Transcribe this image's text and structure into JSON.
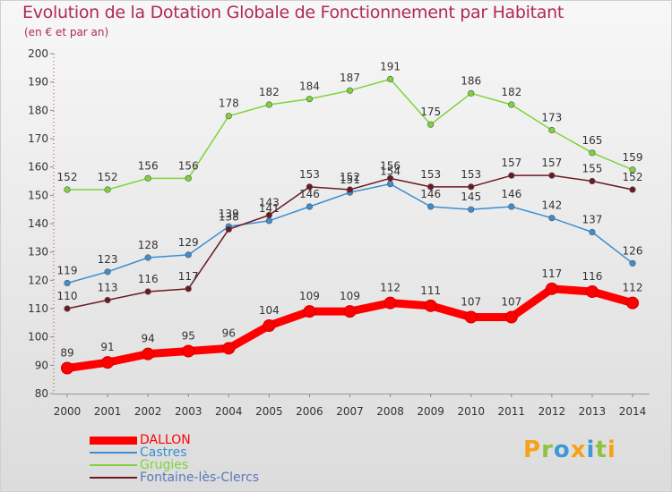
{
  "header": {
    "title": "Evolution de la Dotation Globale de Fonctionnement par Habitant",
    "subtitle": "(en € et par an)"
  },
  "chart_data": {
    "type": "line",
    "x": [
      "2000",
      "2001",
      "2002",
      "2003",
      "2004",
      "2005",
      "2006",
      "2007",
      "2008",
      "2009",
      "2010",
      "2011",
      "2012",
      "2013",
      "2014"
    ],
    "ylim": [
      80,
      200
    ],
    "yticks": [
      80,
      90,
      100,
      110,
      120,
      130,
      140,
      150,
      160,
      170,
      180,
      190,
      200
    ],
    "grid": false,
    "legend_position": "bottom-left",
    "series": [
      {
        "name": "DALLON",
        "color": "#ff0000",
        "values": [
          89,
          91,
          94,
          95,
          96,
          104,
          109,
          109,
          112,
          111,
          107,
          107,
          117,
          116,
          112
        ]
      },
      {
        "name": "Castres",
        "color": "#3c8ed0",
        "values": [
          119,
          123,
          128,
          129,
          139,
          141,
          146,
          151,
          154,
          146,
          145,
          146,
          142,
          137,
          126
        ]
      },
      {
        "name": "Grugies",
        "color": "#7dd43a",
        "values": [
          152,
          152,
          156,
          156,
          178,
          182,
          184,
          187,
          191,
          175,
          186,
          182,
          173,
          165,
          159
        ]
      },
      {
        "name": "Fontaine-lès-Clercs",
        "color": "#6b1a22",
        "values": [
          110,
          113,
          116,
          117,
          138,
          143,
          153,
          152,
          156,
          153,
          153,
          157,
          157,
          155,
          152
        ]
      }
    ]
  },
  "logo": {
    "letters": [
      "P",
      "r",
      "o",
      "x",
      "i",
      "t",
      "i"
    ],
    "colors": [
      "#f5a21b",
      "#8fc23f",
      "#3c98d6",
      "#f5a21b",
      "#3c98d6",
      "#8fc23f",
      "#f5a21b"
    ]
  }
}
